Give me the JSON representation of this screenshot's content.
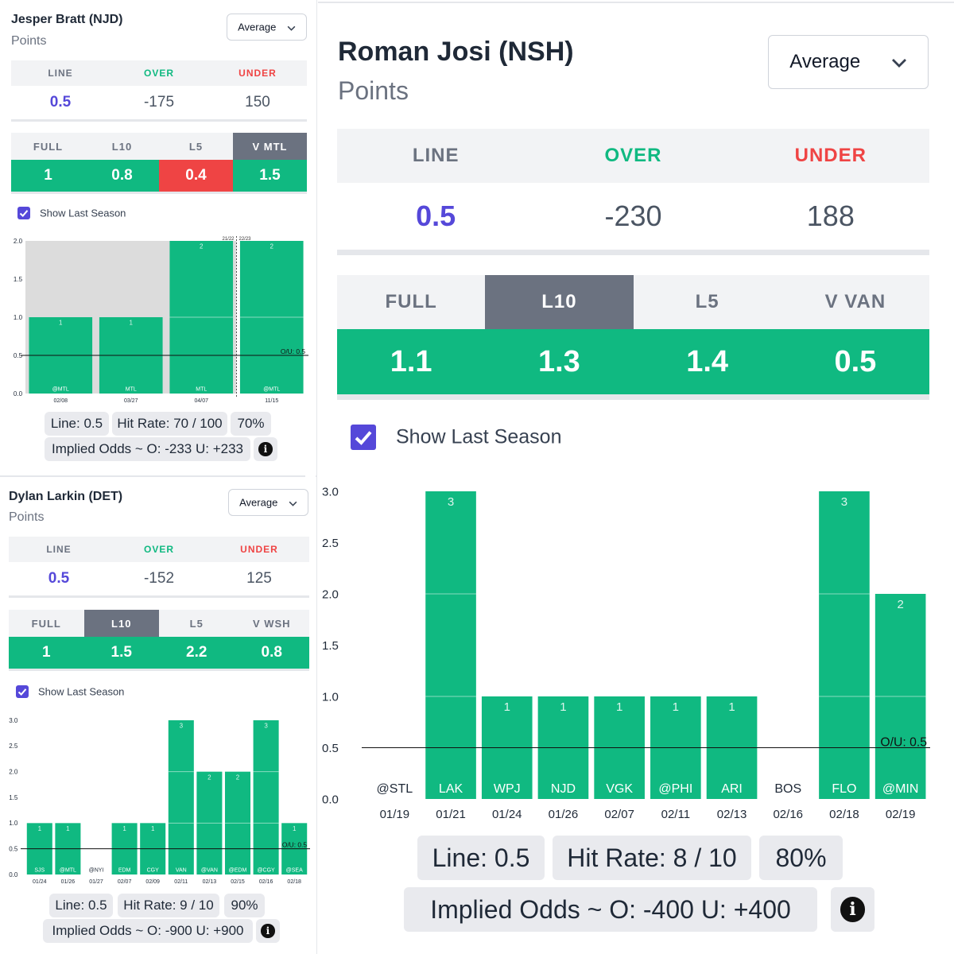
{
  "panels": [
    {
      "id": "bratt",
      "player": "Jesper Bratt (NJD)",
      "stat": "Points",
      "dropdown": "Average",
      "odds": {
        "line_label": "LINE",
        "over_label": "OVER",
        "under_label": "UNDER",
        "line": "0.5",
        "over": "-175",
        "under": "150"
      },
      "tabs": [
        {
          "label": "FULL",
          "value": "1",
          "active": false,
          "red": false
        },
        {
          "label": "L10",
          "value": "0.8",
          "active": false,
          "red": false
        },
        {
          "label": "L5",
          "value": "0.4",
          "active": false,
          "red": true
        },
        {
          "label": "V MTL",
          "value": "1.5",
          "active": true,
          "red": false
        }
      ],
      "show_last_season": "Show Last Season",
      "stats": {
        "line": "Line: 0.5",
        "hit_rate": "Hit Rate: 70 / 100",
        "pct": "70%",
        "implied": "Implied Odds ~ O: -233 U: +233"
      },
      "chart_data": {
        "type": "bar",
        "ylim": [
          0,
          2
        ],
        "yticks": [
          "0.0",
          "0.5",
          "1.0",
          "1.5",
          "2.0"
        ],
        "ou_line": 0.5,
        "ou_label": "O/U: 0.5",
        "season_labels": [
          "21/22",
          "22/23"
        ],
        "season_split_index": 3,
        "last_season_count": 3,
        "bars": [
          {
            "value": 1,
            "label": "1",
            "opponent": "@MTL",
            "date": "02/08"
          },
          {
            "value": 1,
            "label": "1",
            "opponent": "MTL",
            "date": "03/27"
          },
          {
            "value": 2,
            "label": "2",
            "opponent": "MTL",
            "date": "04/07"
          },
          {
            "value": 2,
            "label": "2",
            "opponent": "@MTL",
            "date": "11/15"
          }
        ]
      }
    },
    {
      "id": "larkin",
      "player": "Dylan Larkin (DET)",
      "stat": "Points",
      "dropdown": "Average",
      "odds": {
        "line_label": "LINE",
        "over_label": "OVER",
        "under_label": "UNDER",
        "line": "0.5",
        "over": "-152",
        "under": "125"
      },
      "tabs": [
        {
          "label": "FULL",
          "value": "1",
          "active": false,
          "red": false
        },
        {
          "label": "L10",
          "value": "1.5",
          "active": true,
          "red": false
        },
        {
          "label": "L5",
          "value": "2.2",
          "active": false,
          "red": false
        },
        {
          "label": "V WSH",
          "value": "0.8",
          "active": false,
          "red": false
        }
      ],
      "show_last_season": "Show Last Season",
      "stats": {
        "line": "Line: 0.5",
        "hit_rate": "Hit Rate: 9 / 10",
        "pct": "90%",
        "implied": "Implied Odds ~ O: -900 U: +900"
      },
      "chart_data": {
        "type": "bar",
        "ylim": [
          0,
          3
        ],
        "yticks": [
          "0.0",
          "0.5",
          "1.0",
          "1.5",
          "2.0",
          "2.5",
          "3.0"
        ],
        "ou_line": 0.5,
        "ou_label": "O/U: 0.5",
        "bars": [
          {
            "value": 1,
            "label": "1",
            "opponent": "SJS",
            "date": "01/24"
          },
          {
            "value": 1,
            "label": "1",
            "opponent": "@MTL",
            "date": "01/26"
          },
          {
            "value": 0,
            "label": "",
            "opponent": "@NYI",
            "date": "01/27"
          },
          {
            "value": 1,
            "label": "1",
            "opponent": "EDM",
            "date": "02/07"
          },
          {
            "value": 1,
            "label": "1",
            "opponent": "CGY",
            "date": "02/09"
          },
          {
            "value": 3,
            "label": "3",
            "opponent": "VAN",
            "date": "02/11"
          },
          {
            "value": 2,
            "label": "2",
            "opponent": "@VAN",
            "date": "02/13"
          },
          {
            "value": 2,
            "label": "2",
            "opponent": "@EDM",
            "date": "02/15"
          },
          {
            "value": 3,
            "label": "3",
            "opponent": "@CGY",
            "date": "02/16"
          },
          {
            "value": 1,
            "label": "1",
            "opponent": "@SEA",
            "date": "02/18"
          }
        ]
      }
    },
    {
      "id": "josi",
      "player": "Roman Josi (NSH)",
      "stat": "Points",
      "dropdown": "Average",
      "odds": {
        "line_label": "LINE",
        "over_label": "OVER",
        "under_label": "UNDER",
        "line": "0.5",
        "over": "-230",
        "under": "188"
      },
      "tabs": [
        {
          "label": "FULL",
          "value": "1.1",
          "active": false,
          "red": false
        },
        {
          "label": "L10",
          "value": "1.3",
          "active": true,
          "red": false
        },
        {
          "label": "L5",
          "value": "1.4",
          "active": false,
          "red": false
        },
        {
          "label": "V VAN",
          "value": "0.5",
          "active": false,
          "red": false
        }
      ],
      "show_last_season": "Show Last Season",
      "stats": {
        "line": "Line: 0.5",
        "hit_rate": "Hit Rate: 8 / 10",
        "pct": "80%",
        "implied": "Implied Odds ~ O: -400 U: +400"
      },
      "chart_data": {
        "type": "bar",
        "ylim": [
          0,
          3
        ],
        "yticks": [
          "0.0",
          "0.5",
          "1.0",
          "1.5",
          "2.0",
          "2.5",
          "3.0"
        ],
        "ou_line": 0.5,
        "ou_label": "O/U: 0.5",
        "bars": [
          {
            "value": 0,
            "label": "",
            "opponent": "@STL",
            "date": "01/19"
          },
          {
            "value": 3,
            "label": "3",
            "opponent": "LAK",
            "date": "01/21"
          },
          {
            "value": 1,
            "label": "1",
            "opponent": "WPJ",
            "date": "01/24"
          },
          {
            "value": 1,
            "label": "1",
            "opponent": "NJD",
            "date": "01/26"
          },
          {
            "value": 1,
            "label": "1",
            "opponent": "VGK",
            "date": "02/07"
          },
          {
            "value": 1,
            "label": "1",
            "opponent": "@PHI",
            "date": "02/11"
          },
          {
            "value": 1,
            "label": "1",
            "opponent": "ARI",
            "date": "02/13"
          },
          {
            "value": 0,
            "label": "",
            "opponent": "BOS",
            "date": "02/16"
          },
          {
            "value": 3,
            "label": "3",
            "opponent": "FLO",
            "date": "02/18"
          },
          {
            "value": 2,
            "label": "2",
            "opponent": "@MIN",
            "date": "02/19"
          }
        ]
      }
    }
  ]
}
